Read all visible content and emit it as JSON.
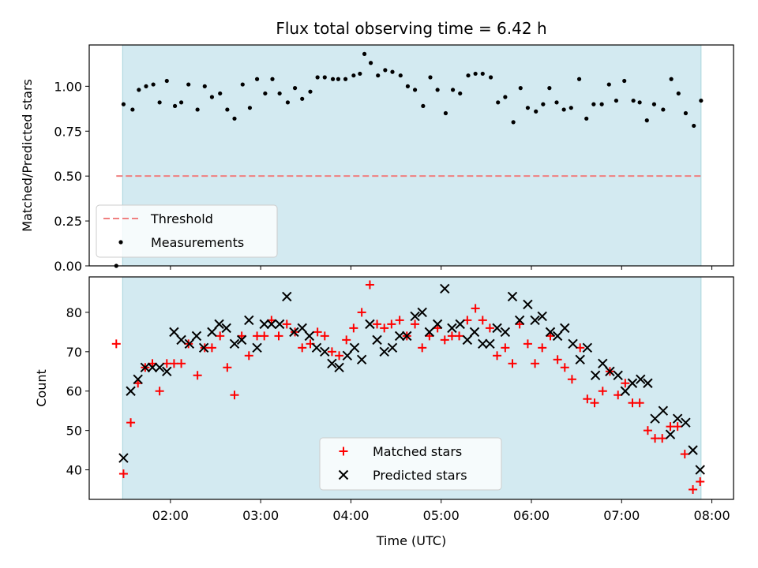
{
  "chart_data": [
    {
      "type": "scatter",
      "title": "Flux total observing time = 6.42 h",
      "ylabel": "Matched/Predicted stars",
      "xlabel": "",
      "ylim": [
        0,
        1.23
      ],
      "x_unit": "hours UTC",
      "xlim": [
        1.1,
        8.24
      ],
      "yticks": [
        0.0,
        0.25,
        0.5,
        0.75,
        1.0
      ],
      "ytick_labels": [
        "0.00",
        "0.25",
        "0.50",
        "0.75",
        "1.00"
      ],
      "shaded_span": [
        1.47,
        7.88
      ],
      "shade_color": "#d3eaf1",
      "threshold": {
        "name": "Threshold",
        "value": 0.5,
        "x_range": [
          1.4,
          7.88
        ],
        "color": "#f08080"
      },
      "series": [
        {
          "name": "Measurements",
          "color": "#000000",
          "points": [
            [
              1.4,
              0.0
            ],
            [
              1.48,
              0.9
            ],
            [
              1.58,
              0.87
            ],
            [
              1.65,
              0.98
            ],
            [
              1.73,
              1.0
            ],
            [
              1.81,
              1.01
            ],
            [
              1.88,
              0.91
            ],
            [
              1.96,
              1.03
            ],
            [
              2.05,
              0.89
            ],
            [
              2.12,
              0.91
            ],
            [
              2.2,
              1.01
            ],
            [
              2.3,
              0.87
            ],
            [
              2.38,
              1.0
            ],
            [
              2.46,
              0.94
            ],
            [
              2.55,
              0.96
            ],
            [
              2.63,
              0.87
            ],
            [
              2.71,
              0.82
            ],
            [
              2.8,
              1.01
            ],
            [
              2.88,
              0.88
            ],
            [
              2.96,
              1.04
            ],
            [
              3.05,
              0.96
            ],
            [
              3.13,
              1.04
            ],
            [
              3.21,
              0.96
            ],
            [
              3.3,
              0.91
            ],
            [
              3.38,
              0.99
            ],
            [
              3.46,
              0.93
            ],
            [
              3.55,
              0.97
            ],
            [
              3.63,
              1.05
            ],
            [
              3.71,
              1.05
            ],
            [
              3.8,
              1.04
            ],
            [
              3.86,
              1.04
            ],
            [
              3.94,
              1.04
            ],
            [
              4.03,
              1.06
            ],
            [
              4.1,
              1.07
            ],
            [
              4.15,
              1.18
            ],
            [
              4.22,
              1.13
            ],
            [
              4.3,
              1.06
            ],
            [
              4.38,
              1.09
            ],
            [
              4.46,
              1.08
            ],
            [
              4.55,
              1.06
            ],
            [
              4.63,
              1.0
            ],
            [
              4.71,
              0.98
            ],
            [
              4.8,
              0.89
            ],
            [
              4.88,
              1.05
            ],
            [
              4.96,
              0.98
            ],
            [
              5.05,
              0.85
            ],
            [
              5.13,
              0.98
            ],
            [
              5.21,
              0.96
            ],
            [
              5.3,
              1.06
            ],
            [
              5.38,
              1.07
            ],
            [
              5.46,
              1.07
            ],
            [
              5.55,
              1.05
            ],
            [
              5.63,
              0.91
            ],
            [
              5.71,
              0.94
            ],
            [
              5.8,
              0.8
            ],
            [
              5.88,
              0.99
            ],
            [
              5.96,
              0.88
            ],
            [
              6.05,
              0.86
            ],
            [
              6.13,
              0.9
            ],
            [
              6.2,
              0.99
            ],
            [
              6.28,
              0.91
            ],
            [
              6.36,
              0.87
            ],
            [
              6.44,
              0.88
            ],
            [
              6.53,
              1.04
            ],
            [
              6.61,
              0.82
            ],
            [
              6.69,
              0.9
            ],
            [
              6.78,
              0.9
            ],
            [
              6.86,
              1.01
            ],
            [
              6.94,
              0.92
            ],
            [
              7.03,
              1.03
            ],
            [
              7.13,
              0.92
            ],
            [
              7.2,
              0.91
            ],
            [
              7.28,
              0.81
            ],
            [
              7.36,
              0.9
            ],
            [
              7.46,
              0.87
            ],
            [
              7.55,
              1.04
            ],
            [
              7.63,
              0.96
            ],
            [
              7.71,
              0.85
            ],
            [
              7.8,
              0.78
            ],
            [
              7.88,
              0.92
            ]
          ]
        }
      ],
      "legend": {
        "placement": "lower-left",
        "entries": [
          "Threshold",
          "Measurements"
        ]
      }
    },
    {
      "type": "scatter",
      "title": "",
      "xlabel": "Time (UTC)",
      "ylabel": "Count",
      "x_unit": "hours UTC",
      "xlim": [
        1.1,
        8.24
      ],
      "ylim": [
        32.5,
        89
      ],
      "yticks": [
        40,
        50,
        60,
        70,
        80
      ],
      "xticks": [
        2,
        3,
        4,
        5,
        6,
        7,
        8
      ],
      "xtick_labels": [
        "02:00",
        "03:00",
        "04:00",
        "05:00",
        "06:00",
        "07:00",
        "08:00"
      ],
      "shaded_span": [
        1.47,
        7.88
      ],
      "shade_color": "#d3eaf1",
      "series": [
        {
          "name": "Matched stars",
          "marker": "plus",
          "color": "#ff0000",
          "points": [
            [
              1.4,
              72
            ],
            [
              1.48,
              39
            ],
            [
              1.56,
              52
            ],
            [
              1.64,
              62
            ],
            [
              1.72,
              66
            ],
            [
              1.8,
              67
            ],
            [
              1.88,
              60
            ],
            [
              1.96,
              67
            ],
            [
              2.04,
              67
            ],
            [
              2.12,
              67
            ],
            [
              2.2,
              72
            ],
            [
              2.3,
              64
            ],
            [
              2.38,
              71
            ],
            [
              2.46,
              71
            ],
            [
              2.55,
              74
            ],
            [
              2.63,
              66
            ],
            [
              2.71,
              59
            ],
            [
              2.79,
              74
            ],
            [
              2.87,
              69
            ],
            [
              2.96,
              74
            ],
            [
              3.04,
              74
            ],
            [
              3.12,
              78
            ],
            [
              3.2,
              74
            ],
            [
              3.29,
              77
            ],
            [
              3.38,
              75
            ],
            [
              3.46,
              71
            ],
            [
              3.55,
              72
            ],
            [
              3.63,
              75
            ],
            [
              3.71,
              74
            ],
            [
              3.79,
              70
            ],
            [
              3.87,
              69
            ],
            [
              3.95,
              73
            ],
            [
              4.03,
              76
            ],
            [
              4.12,
              80
            ],
            [
              4.21,
              87
            ],
            [
              4.29,
              77
            ],
            [
              4.37,
              76
            ],
            [
              4.45,
              77
            ],
            [
              4.54,
              78
            ],
            [
              4.62,
              74
            ],
            [
              4.71,
              77
            ],
            [
              4.79,
              71
            ],
            [
              4.87,
              74
            ],
            [
              4.96,
              76
            ],
            [
              5.04,
              73
            ],
            [
              5.12,
              74
            ],
            [
              5.2,
              74
            ],
            [
              5.29,
              78
            ],
            [
              5.38,
              81
            ],
            [
              5.46,
              78
            ],
            [
              5.54,
              76
            ],
            [
              5.62,
              69
            ],
            [
              5.71,
              71
            ],
            [
              5.79,
              67
            ],
            [
              5.87,
              77
            ],
            [
              5.96,
              72
            ],
            [
              6.04,
              67
            ],
            [
              6.12,
              71
            ],
            [
              6.21,
              74
            ],
            [
              6.29,
              68
            ],
            [
              6.37,
              66
            ],
            [
              6.45,
              63
            ],
            [
              6.54,
              71
            ],
            [
              6.62,
              58
            ],
            [
              6.7,
              57
            ],
            [
              6.79,
              60
            ],
            [
              6.87,
              65
            ],
            [
              6.96,
              59
            ],
            [
              7.04,
              62
            ],
            [
              7.12,
              57
            ],
            [
              7.2,
              57
            ],
            [
              7.29,
              50
            ],
            [
              7.37,
              48
            ],
            [
              7.45,
              48
            ],
            [
              7.54,
              51
            ],
            [
              7.62,
              51
            ],
            [
              7.7,
              44
            ],
            [
              7.79,
              35
            ],
            [
              7.87,
              37
            ]
          ]
        },
        {
          "name": "Predicted stars",
          "marker": "x",
          "color": "#000000",
          "points": [
            [
              1.48,
              43
            ],
            [
              1.56,
              60
            ],
            [
              1.64,
              63
            ],
            [
              1.72,
              66
            ],
            [
              1.8,
              66
            ],
            [
              1.88,
              66
            ],
            [
              1.96,
              65
            ],
            [
              2.04,
              75
            ],
            [
              2.12,
              73
            ],
            [
              2.21,
              72
            ],
            [
              2.29,
              74
            ],
            [
              2.37,
              71
            ],
            [
              2.46,
              75
            ],
            [
              2.54,
              77
            ],
            [
              2.62,
              76
            ],
            [
              2.71,
              72
            ],
            [
              2.79,
              73
            ],
            [
              2.87,
              78
            ],
            [
              2.96,
              71
            ],
            [
              3.04,
              77
            ],
            [
              3.12,
              77
            ],
            [
              3.21,
              77
            ],
            [
              3.29,
              84
            ],
            [
              3.37,
              75
            ],
            [
              3.46,
              76
            ],
            [
              3.54,
              74
            ],
            [
              3.62,
              71
            ],
            [
              3.71,
              70
            ],
            [
              3.79,
              67
            ],
            [
              3.87,
              66
            ],
            [
              3.96,
              69
            ],
            [
              4.04,
              71
            ],
            [
              4.12,
              68
            ],
            [
              4.21,
              77
            ],
            [
              4.29,
              73
            ],
            [
              4.37,
              70
            ],
            [
              4.46,
              71
            ],
            [
              4.54,
              74
            ],
            [
              4.62,
              74
            ],
            [
              4.71,
              79
            ],
            [
              4.79,
              80
            ],
            [
              4.87,
              75
            ],
            [
              4.96,
              77
            ],
            [
              5.04,
              86
            ],
            [
              5.12,
              76
            ],
            [
              5.21,
              77
            ],
            [
              5.29,
              73
            ],
            [
              5.37,
              75
            ],
            [
              5.46,
              72
            ],
            [
              5.54,
              72
            ],
            [
              5.62,
              76
            ],
            [
              5.71,
              75
            ],
            [
              5.79,
              84
            ],
            [
              5.87,
              78
            ],
            [
              5.96,
              82
            ],
            [
              6.04,
              78
            ],
            [
              6.12,
              79
            ],
            [
              6.21,
              75
            ],
            [
              6.29,
              74
            ],
            [
              6.37,
              76
            ],
            [
              6.46,
              72
            ],
            [
              6.54,
              68
            ],
            [
              6.62,
              71
            ],
            [
              6.71,
              64
            ],
            [
              6.79,
              67
            ],
            [
              6.87,
              65
            ],
            [
              6.96,
              64
            ],
            [
              7.04,
              60
            ],
            [
              7.12,
              62
            ],
            [
              7.21,
              63
            ],
            [
              7.29,
              62
            ],
            [
              7.37,
              53
            ],
            [
              7.46,
              55
            ],
            [
              7.54,
              49
            ],
            [
              7.62,
              53
            ],
            [
              7.71,
              52
            ],
            [
              7.79,
              45
            ],
            [
              7.87,
              40
            ]
          ]
        }
      ],
      "legend": {
        "placement": "lower-center",
        "entries": [
          "Matched stars",
          "Predicted stars"
        ]
      }
    }
  ]
}
